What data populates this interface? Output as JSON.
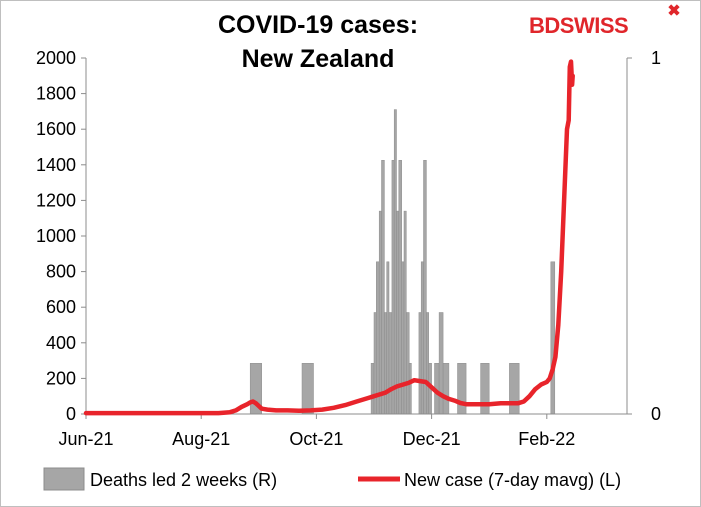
{
  "logo": {
    "text": "BDSWISS",
    "color": "#e0262b"
  },
  "chart_data": {
    "type": "bar+line",
    "title": [
      "COVID-19 cases:",
      "New Zealand"
    ],
    "x_tick_labels": [
      "Jun-21",
      "Aug-21",
      "Oct-21",
      "Dec-21",
      "Feb-22"
    ],
    "x_tick_months": [
      0,
      2,
      4,
      6,
      8
    ],
    "left_axis": {
      "min": 0,
      "max": 2000,
      "ticks": [
        "0",
        "200",
        "400",
        "600",
        "800",
        "1000",
        "1200",
        "1400",
        "1600",
        "1800",
        "2000"
      ]
    },
    "right_axis": {
      "min": 0,
      "max": 1,
      "ticks": [
        "0",
        "1"
      ]
    },
    "colors": {
      "bars": "#a6a6a6",
      "bar_edge": "#8c8c8c",
      "line": "#e8242b",
      "axis": "#8c8c8c"
    },
    "legend": {
      "placement": "bottom",
      "items": [
        {
          "label": "Deaths led 2 weeks (R)",
          "type": "bar"
        },
        {
          "label": "New case (7-day mavg) (L)",
          "type": "line"
        }
      ]
    },
    "series": [
      {
        "name": "Deaths led 2 weeks (R)",
        "axis": "right",
        "values_in_left_units_note_free": true,
        "bars": [
          {
            "start": 2.85,
            "end": 3.05,
            "height": 285
          },
          {
            "start": 3.75,
            "end": 3.95,
            "height": 285
          },
          {
            "start": 4.95,
            "end": 5.0,
            "height": 285
          },
          {
            "start": 5.0,
            "end": 5.04,
            "height": 570
          },
          {
            "start": 5.04,
            "end": 5.09,
            "height": 855
          },
          {
            "start": 5.09,
            "end": 5.13,
            "height": 1140
          },
          {
            "start": 5.13,
            "end": 5.18,
            "height": 1425
          },
          {
            "start": 5.18,
            "end": 5.22,
            "height": 570
          },
          {
            "start": 5.22,
            "end": 5.26,
            "height": 855
          },
          {
            "start": 5.26,
            "end": 5.31,
            "height": 570
          },
          {
            "start": 5.31,
            "end": 5.35,
            "height": 1425
          },
          {
            "start": 5.35,
            "end": 5.39,
            "height": 1710
          },
          {
            "start": 5.39,
            "end": 5.43,
            "height": 1140
          },
          {
            "start": 5.43,
            "end": 5.48,
            "height": 1425
          },
          {
            "start": 5.48,
            "end": 5.52,
            "height": 855
          },
          {
            "start": 5.52,
            "end": 5.56,
            "height": 1140
          },
          {
            "start": 5.56,
            "end": 5.61,
            "height": 570
          },
          {
            "start": 5.61,
            "end": 5.65,
            "height": 285
          },
          {
            "start": 5.78,
            "end": 5.82,
            "height": 570
          },
          {
            "start": 5.82,
            "end": 5.86,
            "height": 855
          },
          {
            "start": 5.86,
            "end": 5.91,
            "height": 1425
          },
          {
            "start": 5.91,
            "end": 5.95,
            "height": 570
          },
          {
            "start": 5.95,
            "end": 6.0,
            "height": 285
          },
          {
            "start": 6.05,
            "end": 6.13,
            "height": 285
          },
          {
            "start": 6.13,
            "end": 6.2,
            "height": 570
          },
          {
            "start": 6.2,
            "end": 6.3,
            "height": 285
          },
          {
            "start": 6.45,
            "end": 6.6,
            "height": 285
          },
          {
            "start": 6.85,
            "end": 7.0,
            "height": 285
          },
          {
            "start": 7.35,
            "end": 7.52,
            "height": 285
          },
          {
            "start": 8.07,
            "end": 8.14,
            "height": 855
          }
        ]
      },
      {
        "name": "New case (7-day mavg) (L)",
        "axis": "left",
        "points": [
          [
            0.0,
            5
          ],
          [
            0.5,
            5
          ],
          [
            1.0,
            5
          ],
          [
            1.5,
            5
          ],
          [
            2.0,
            5
          ],
          [
            2.3,
            5
          ],
          [
            2.5,
            10
          ],
          [
            2.6,
            20
          ],
          [
            2.7,
            40
          ],
          [
            2.8,
            55
          ],
          [
            2.85,
            65
          ],
          [
            2.9,
            70
          ],
          [
            2.95,
            60
          ],
          [
            3.0,
            45
          ],
          [
            3.05,
            30
          ],
          [
            3.15,
            25
          ],
          [
            3.3,
            20
          ],
          [
            3.5,
            20
          ],
          [
            3.7,
            18
          ],
          [
            3.9,
            20
          ],
          [
            4.1,
            25
          ],
          [
            4.3,
            35
          ],
          [
            4.5,
            50
          ],
          [
            4.7,
            70
          ],
          [
            4.9,
            90
          ],
          [
            5.0,
            100
          ],
          [
            5.1,
            110
          ],
          [
            5.2,
            120
          ],
          [
            5.3,
            140
          ],
          [
            5.4,
            155
          ],
          [
            5.5,
            165
          ],
          [
            5.6,
            175
          ],
          [
            5.7,
            190
          ],
          [
            5.8,
            185
          ],
          [
            5.9,
            180
          ],
          [
            6.0,
            150
          ],
          [
            6.1,
            120
          ],
          [
            6.2,
            100
          ],
          [
            6.3,
            85
          ],
          [
            6.4,
            75
          ],
          [
            6.5,
            62
          ],
          [
            6.6,
            55
          ],
          [
            6.8,
            55
          ],
          [
            7.0,
            55
          ],
          [
            7.2,
            60
          ],
          [
            7.4,
            60
          ],
          [
            7.5,
            60
          ],
          [
            7.6,
            70
          ],
          [
            7.7,
            100
          ],
          [
            7.8,
            140
          ],
          [
            7.9,
            165
          ],
          [
            8.0,
            180
          ],
          [
            8.05,
            200
          ],
          [
            8.1,
            250
          ],
          [
            8.15,
            320
          ],
          [
            8.2,
            500
          ],
          [
            8.25,
            800
          ],
          [
            8.3,
            1200
          ],
          [
            8.35,
            1600
          ],
          [
            8.38,
            1650
          ],
          [
            8.4,
            1950
          ],
          [
            8.42,
            1980
          ],
          [
            8.44,
            1850
          ],
          [
            8.45,
            1900
          ]
        ]
      }
    ]
  }
}
